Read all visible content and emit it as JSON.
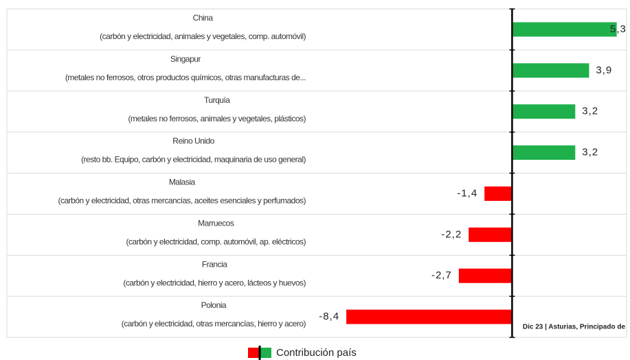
{
  "chart_data": {
    "type": "bar",
    "orientation": "horizontal",
    "categories": [
      "China",
      "Singapur",
      "Turquía",
      "Reino Unido",
      "Malasia",
      "Marruecos",
      "Francia",
      "Polonia"
    ],
    "category_details": [
      "(carbón y electricidad,  animales y vegetales, comp. automóvil)",
      "(metales no ferrosos, otros productos químicos, otras manufacturas  de...",
      "(metales no ferrosos, animales y vegetales, plásticos)",
      "(resto bb. Equipo, carbón y electricidad,  maquinaria de uso general)",
      "(carbón y electricidad,  otras mercancías, aceites esenciales  y perfumados)",
      "(carbón y electricidad,  comp. automóvil, ap. eléctricos)",
      "(carbón y electricidad,  hierro y acero, lácteos y huevos)",
      "(carbón y electricidad,  otras mercancías,  hierro y acero)"
    ],
    "series": [
      {
        "name": "Contribución país",
        "positive_color": "#1fb04b",
        "negative_color": "#ff0000",
        "values": [
          5.3,
          3.9,
          3.2,
          3.2,
          -1.4,
          -2.2,
          -2.7,
          -8.4
        ],
        "value_labels": [
          "5,3",
          "3,9",
          "3,2",
          "3,2",
          "-1,4",
          "-2,2",
          "-2,7",
          "-8,4"
        ]
      }
    ],
    "xlim": [
      -25.6,
      5.8
    ],
    "annotation": "Dic 23 | Asturias, Principado de",
    "legend": "bottom"
  }
}
